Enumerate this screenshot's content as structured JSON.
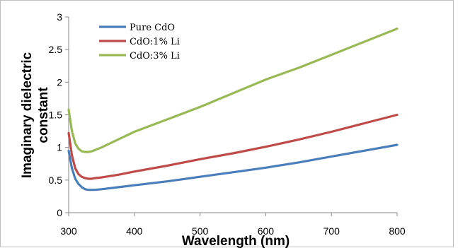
{
  "chart_data": {
    "type": "line",
    "title": "",
    "xlabel": "Wavelength (nm)",
    "ylabel": "Imaginary dielectric constant",
    "ylabel_lines": [
      "Imaginary dielectric",
      "constant"
    ],
    "xlim": [
      300,
      800
    ],
    "ylim": [
      0,
      3
    ],
    "xticks": [
      300,
      400,
      500,
      600,
      700,
      800
    ],
    "yticks": [
      0,
      0.5,
      1,
      1.5,
      2,
      2.5,
      3
    ],
    "ytick_labels": [
      "0",
      "0.5",
      "1",
      "1.5",
      "2",
      "2.5",
      "3"
    ],
    "grid": false,
    "legend_position": "top-left",
    "series": [
      {
        "name": "Pure CdO",
        "color": "#4a7ebb",
        "x": [
          300,
          305,
          310,
          315,
          320,
          325,
          330,
          335,
          340,
          350,
          375,
          400,
          450,
          500,
          550,
          600,
          650,
          700,
          750,
          800
        ],
        "y": [
          0.95,
          0.68,
          0.52,
          0.44,
          0.39,
          0.36,
          0.35,
          0.35,
          0.35,
          0.36,
          0.39,
          0.42,
          0.48,
          0.55,
          0.62,
          0.69,
          0.77,
          0.86,
          0.95,
          1.04
        ]
      },
      {
        "name": "CdO:1% Li",
        "color": "#be4b48",
        "x": [
          300,
          305,
          310,
          315,
          320,
          325,
          330,
          335,
          340,
          350,
          375,
          400,
          450,
          500,
          550,
          600,
          650,
          700,
          750,
          800
        ],
        "y": [
          1.22,
          0.88,
          0.68,
          0.59,
          0.55,
          0.53,
          0.52,
          0.52,
          0.53,
          0.54,
          0.58,
          0.63,
          0.72,
          0.82,
          0.91,
          1.01,
          1.12,
          1.24,
          1.37,
          1.5
        ]
      },
      {
        "name": "CdO:3% Li",
        "color": "#98b954",
        "x": [
          300,
          305,
          310,
          315,
          320,
          325,
          330,
          335,
          340,
          350,
          375,
          400,
          450,
          500,
          550,
          600,
          650,
          700,
          750,
          800
        ],
        "y": [
          1.58,
          1.25,
          1.06,
          0.98,
          0.94,
          0.93,
          0.93,
          0.94,
          0.96,
          1.0,
          1.12,
          1.24,
          1.43,
          1.62,
          1.83,
          2.04,
          2.22,
          2.42,
          2.62,
          2.82
        ]
      }
    ]
  }
}
